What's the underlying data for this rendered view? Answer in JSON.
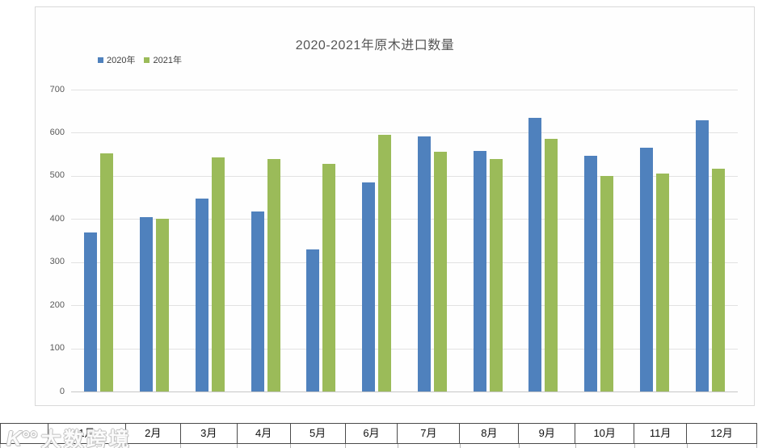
{
  "chart_data": {
    "type": "bar",
    "title": "2020-2021年原木进口数量",
    "categories": [
      "1月",
      "2月",
      "3月",
      "4月",
      "5月",
      "6月",
      "7月",
      "8月",
      "9月",
      "10月",
      "11月",
      "12月"
    ],
    "series": [
      {
        "name": "2020年",
        "color": "#4F81BD",
        "values": [
          368,
          405,
          447,
          418,
          330,
          484,
          592,
          557,
          635,
          547,
          565,
          628
        ]
      },
      {
        "name": "2021年",
        "color": "#9BBB59",
        "values": [
          552,
          400,
          542,
          540,
          528,
          595,
          555,
          540,
          585,
          499,
          505,
          516
        ]
      }
    ],
    "xlabel": "",
    "ylabel": "",
    "ylim": [
      0,
      700
    ],
    "yticks": [
      0,
      100,
      200,
      300,
      400,
      500,
      600,
      700
    ],
    "grid": true,
    "legend_position": "top-left"
  },
  "table": {
    "header_row": [
      "",
      "1月",
      "2月",
      "3月",
      "4月",
      "5月",
      "6月",
      "7月",
      "8月",
      "9月",
      "10月",
      "11月",
      "12月"
    ]
  },
  "watermark": {
    "logo": "K°°",
    "text": "大数跨境"
  },
  "colors": {
    "series_2020": "#4F81BD",
    "series_2021": "#9BBB59",
    "gridline": "#e2e2e2",
    "axis_line": "#c6c6c6",
    "panel_border": "#d9d9d9",
    "table_border": "#4a4a4a"
  }
}
